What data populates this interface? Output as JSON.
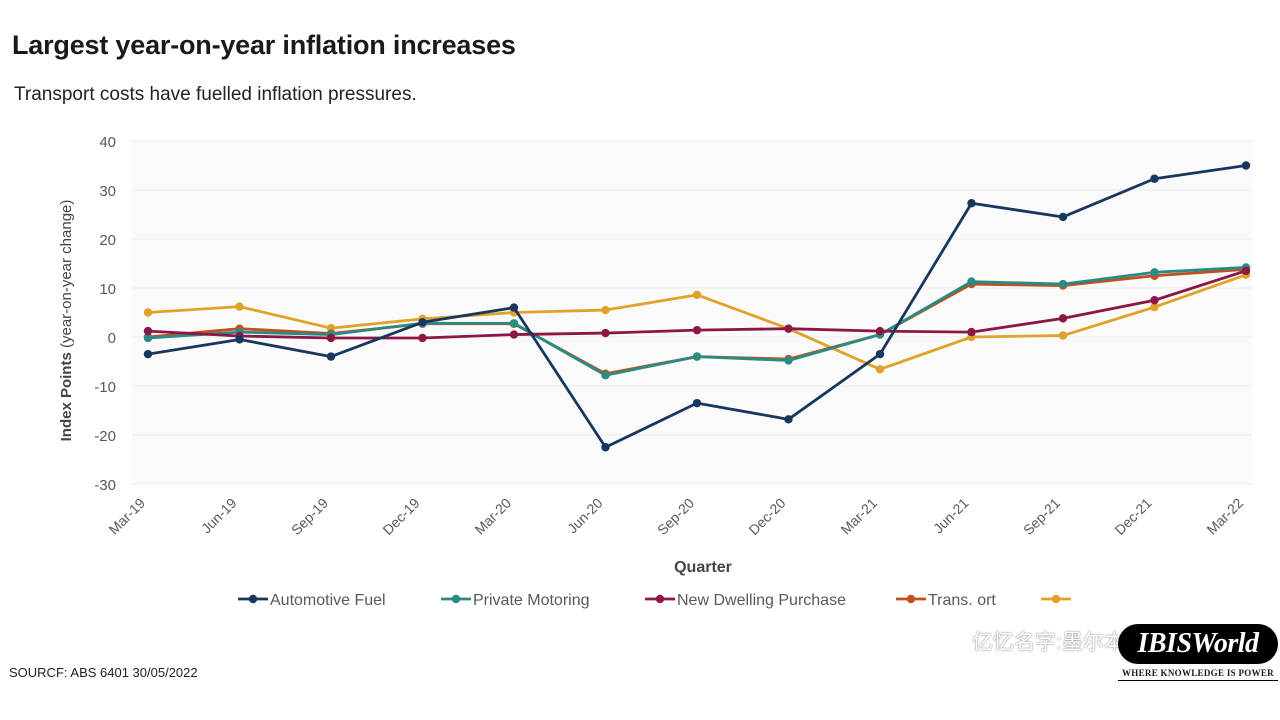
{
  "page": {
    "title": "Largest year-on-year inflation increases",
    "subtitle": "Transport costs have fuelled inflation pressures.",
    "source": "SOURCF: ABS 6401 30/05/2022",
    "watermark": "亿忆名字:墨尔本小喇叭",
    "logo": "IBISWorld",
    "logo_tagline": "WHERE KNOWLEDGE IS POWER"
  },
  "chart_data": {
    "type": "line",
    "title": "",
    "xlabel": "Quarter",
    "ylabel": "Index Points (year-on-year change)",
    "ylim": [
      -30,
      40
    ],
    "yticks": [
      40,
      30,
      20,
      10,
      0,
      -10,
      -20,
      -30
    ],
    "grid": true,
    "legend": "bottom",
    "categories": [
      "Mar-19",
      "Jun-19",
      "Sep-19",
      "Dec-19",
      "Mar-20",
      "Jun-20",
      "Sep-20",
      "Dec-20",
      "Mar-21",
      "Jun-21",
      "Sep-21",
      "Dec-21",
      "Mar-22"
    ],
    "series": [
      {
        "name": "Automotive Fuel",
        "color": "#17375e",
        "values": [
          -3.5,
          -0.5,
          -4,
          3,
          6,
          -22.5,
          -13.5,
          -16.8,
          -3.5,
          27.3,
          24.5,
          32.3,
          35
        ]
      },
      {
        "name": "Private Motoring",
        "color": "#2a8a84",
        "values": [
          -0.2,
          1,
          0.5,
          2.8,
          2.8,
          -7.8,
          -4,
          -4.8,
          0.5,
          11.3,
          10.8,
          13.2,
          14.2
        ]
      },
      {
        "name": "New Dwelling Purchase",
        "color": "#8c1746",
        "values": [
          1.2,
          0.2,
          -0.2,
          -0.2,
          0.5,
          0.8,
          1.4,
          1.7,
          1.2,
          1,
          3.8,
          7.5,
          13.5
        ]
      },
      {
        "name": "Trans. ort",
        "color": "#c0501c",
        "values": [
          0,
          1.7,
          0.7,
          2.7,
          2.7,
          -7.5,
          -4,
          -4.5,
          0.5,
          10.8,
          10.5,
          12.5,
          13.8
        ]
      },
      {
        "name": "",
        "color": "#e0a32a",
        "values": [
          5,
          6.2,
          1.8,
          3.7,
          5,
          5.5,
          8.6,
          1.7,
          -6.6,
          0,
          0.3,
          6.1,
          12.7
        ]
      }
    ]
  }
}
